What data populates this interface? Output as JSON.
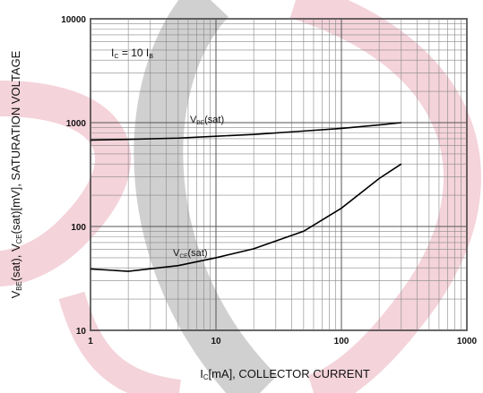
{
  "chart_data": {
    "type": "line",
    "xlabel": [
      {
        "text": "I"
      },
      {
        "sub": "C"
      },
      {
        "text": "[mA], COLLECTOR CURRENT"
      }
    ],
    "ylabel": [
      {
        "text": "V"
      },
      {
        "sub": "BE"
      },
      {
        "text": "(sat), V"
      },
      {
        "sub": "CE"
      },
      {
        "text": "(sat)[mV], SATURATION VOLTAGE"
      }
    ],
    "annotations": [
      [
        {
          "text": "I"
        },
        {
          "sub": "C"
        },
        {
          "text": " = 10 I"
        },
        {
          "sub": "B"
        }
      ],
      [
        {
          "text": "V"
        },
        {
          "sub": "BE"
        },
        {
          "text": "(sat)"
        }
      ],
      [
        {
          "text": "V"
        },
        {
          "sub": "CE"
        },
        {
          "text": "(sat)"
        }
      ]
    ],
    "xlog": true,
    "ylog": true,
    "grid": true,
    "minor_grid": true,
    "xlim": [
      1,
      1000
    ],
    "ylim": [
      10,
      10000
    ],
    "xticks": [
      1,
      10,
      100,
      1000
    ],
    "yticks": [
      10,
      100,
      1000,
      10000
    ],
    "series": [
      {
        "color": "#000000",
        "x": [
          1,
          2,
          5,
          10,
          20,
          50,
          100,
          200,
          300
        ],
        "values": [
          680,
          690,
          710,
          740,
          770,
          830,
          880,
          950,
          1000
        ]
      },
      {
        "color": "#000000",
        "x": [
          1,
          2,
          5,
          10,
          20,
          50,
          100,
          200,
          300
        ],
        "values": [
          39,
          37,
          42,
          50,
          61,
          90,
          150,
          290,
          400
        ]
      }
    ]
  }
}
